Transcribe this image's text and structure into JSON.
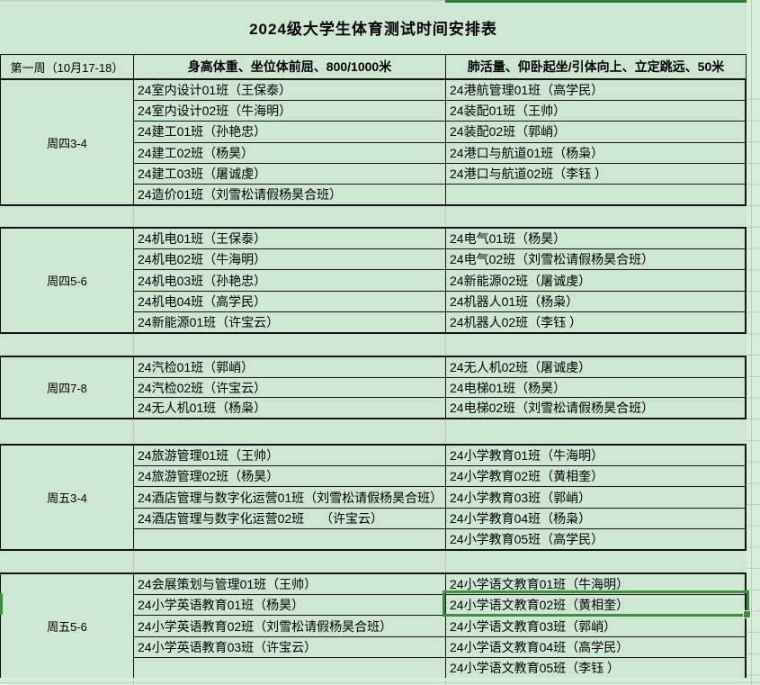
{
  "title": "2024级大学生体育测试时间安排表",
  "header": {
    "week": "第一周（10月17-18）",
    "col_b": "身高体重、坐位体前屈、800/1000米",
    "col_c": "肺活量、仰卧起坐/引体向上、立定跳远、50米"
  },
  "sections": [
    {
      "label": "周四3-4",
      "rows": [
        {
          "b": "24室内设计01班（王保泰）",
          "c": "24港航管理01班（高学民）"
        },
        {
          "b": "24室内设计02班（牛海明）",
          "c": "24装配01班（王帅）"
        },
        {
          "b": "24建工01班（孙艳忠）",
          "c": "24装配02班（郭峭）"
        },
        {
          "b": "24建工02班（杨昊）",
          "c": "24港口与航道01班（杨枭）"
        },
        {
          "b": "24建工03班（屠诚虔）",
          "c": "24港口与航道02班（李钰 ）"
        },
        {
          "b": "24造价01班（刘雪松请假杨昊合班）",
          "c": ""
        }
      ]
    },
    {
      "label": "周四5-6",
      "rows": [
        {
          "b": "24机电01班（王保泰）",
          "c": "24电气01班（杨昊）"
        },
        {
          "b": "24机电02班（牛海明）",
          "c": "24电气02班（刘雪松请假杨昊合班）"
        },
        {
          "b": "24机电03班（孙艳忠）",
          "c": "24新能源02班（屠诚虔）"
        },
        {
          "b": "24机电04班（高学民）",
          "c": "24机器人01班（杨枭）"
        },
        {
          "b": "24新能源01班（许宝云）",
          "c": "24机器人02班（李钰 ）"
        }
      ]
    },
    {
      "label": "周四7-8",
      "rows": [
        {
          "b": "24汽检01班（郭峭）",
          "c": "24无人机02班（屠诚虔）"
        },
        {
          "b": "24汽检02班（许宝云）",
          "c": "24电梯01班（杨昊）"
        },
        {
          "b": "24无人机01班（杨枭）",
          "c": "24电梯02班（刘雪松请假杨昊合班）"
        }
      ]
    },
    {
      "label": "周五3-4",
      "rows": [
        {
          "b": "24旅游管理01班（王帅）",
          "c": "24小学教育01班（牛海明）"
        },
        {
          "b": "24旅游管理02班（杨昊）",
          "c": "24小学教育02班（黄相奎）"
        },
        {
          "b": "24酒店管理与数字化运营01班（刘雪松请假杨昊合班）",
          "c": "24小学教育03班（郭峭）"
        },
        {
          "b": "24酒店管理与数字化运营02班　 （许宝云）",
          "c": "24小学教育04班（杨枭）"
        },
        {
          "b": "",
          "c": "24小学教育05班（高学民）"
        }
      ]
    },
    {
      "label": "周五5-6",
      "rows": [
        {
          "b": "24会展策划与管理01班（王帅）",
          "c": "24小学语文教育01班（牛海明）"
        },
        {
          "b": "24小学英语教育01班（杨昊）",
          "c": "24小学语文教育02班（黄相奎）"
        },
        {
          "b": "24小学英语教育02班（刘雪松请假杨昊合班）",
          "c": "24小学语文教育03班（郭峭）"
        },
        {
          "b": "24小学英语教育03班（许宝云）",
          "c": "24小学语文教育04班（高学民）"
        },
        {
          "b": "",
          "c": "24小学语文教育05班（李钰 ）"
        }
      ]
    }
  ],
  "selection": {
    "section": 4,
    "row": 1,
    "col": "c",
    "cell_text": "24小学语文教育02班（黄相奎）"
  },
  "colors": {
    "cell_bg": "#cee7d3",
    "margin_bg": "#d7eedb",
    "grid_line": "#bcc9be",
    "table_border": "#141414",
    "selection_green": "#3f8e3c",
    "column_highlight_green": "#2f7d33"
  }
}
